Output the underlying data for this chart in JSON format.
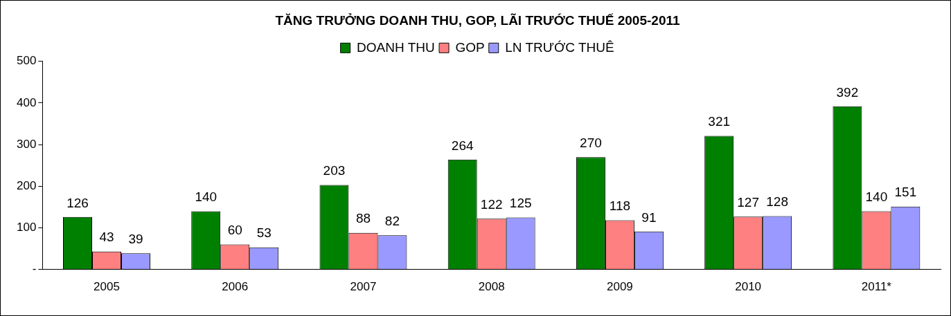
{
  "chart_data": {
    "type": "bar",
    "title": "TĂNG TRƯỞNG DOANH THU, GOP, LÃI TRƯỚC THUẾ 2005-2011",
    "categories": [
      "2005",
      "2006",
      "2007",
      "2008",
      "2009",
      "2010",
      "2011*"
    ],
    "series": [
      {
        "name": "DOANH THU",
        "color": "#008000",
        "values": [
          126,
          140,
          203,
          264,
          270,
          321,
          392
        ]
      },
      {
        "name": "GOP",
        "color": "#ff8080",
        "values": [
          43,
          60,
          88,
          122,
          118,
          127,
          140
        ]
      },
      {
        "name": "LN TRƯỚC THUÊ",
        "color": "#9999ff",
        "values": [
          39,
          53,
          82,
          125,
          91,
          128,
          151
        ]
      }
    ],
    "ylim": [
      0,
      500
    ],
    "yticks": [
      {
        "value": 0,
        "label": "-"
      },
      100,
      200,
      300,
      400,
      500
    ],
    "grid": false,
    "legend": "top",
    "data_labels": true
  }
}
